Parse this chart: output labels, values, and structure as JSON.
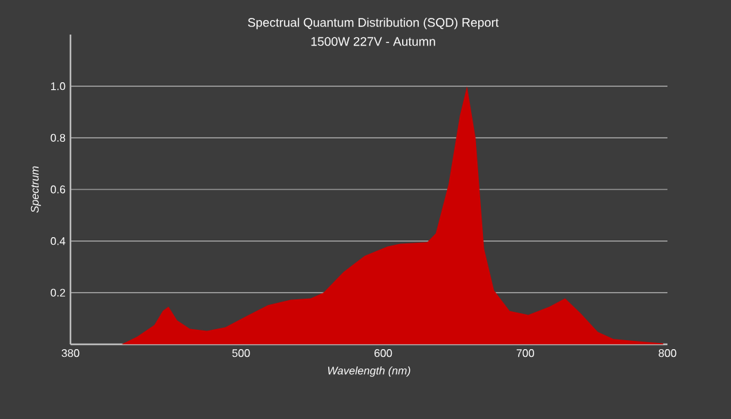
{
  "chart_data": {
    "type": "area",
    "title": "Spectrual Quantum Distribution (SQD) Report",
    "subtitle": "1500W 227V - Autumn",
    "xlabel": "Wavelength (nm)",
    "ylabel": "Spectrum",
    "x": [
      416,
      427,
      439,
      445,
      449,
      455,
      464,
      476,
      489,
      504,
      519,
      535,
      549,
      558,
      572,
      587,
      603,
      612,
      631,
      637,
      646,
      654,
      659,
      665,
      671,
      678,
      689,
      702,
      717,
      728,
      739,
      751,
      762,
      779,
      797
    ],
    "values": [
      0,
      0.03,
      0.075,
      0.13,
      0.146,
      0.093,
      0.06,
      0.052,
      0.066,
      0.11,
      0.152,
      0.173,
      0.178,
      0.2,
      0.28,
      0.343,
      0.379,
      0.39,
      0.396,
      0.43,
      0.62,
      0.887,
      1.0,
      0.8,
      0.37,
      0.209,
      0.129,
      0.114,
      0.146,
      0.178,
      0.12,
      0.048,
      0.021,
      0.012,
      0.004
    ],
    "color": "#cc0000",
    "xlim": [
      380,
      800
    ],
    "xticks": [
      380,
      500,
      600,
      700,
      800
    ],
    "ylim": [
      0,
      1.2
    ],
    "yticks": [
      0.2,
      0.4,
      0.6,
      0.8,
      {
        "value": 1,
        "label": "1.0"
      }
    ],
    "grid": "y"
  }
}
